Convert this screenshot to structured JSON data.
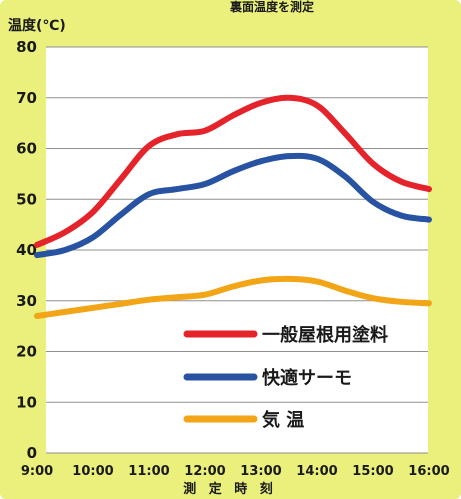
{
  "chart_data": {
    "type": "line",
    "title": "裏面温度を測定",
    "ylabel": "温度(℃)",
    "xlabel": "測 定 時 刻",
    "ylim": [
      0,
      80
    ],
    "yticks": [
      0,
      10,
      20,
      30,
      40,
      50,
      60,
      70,
      80
    ],
    "x_tick_labels": [
      "9:00",
      "10:00",
      "11:00",
      "12:00",
      "13:00",
      "14:00",
      "15:00",
      "16:00"
    ],
    "grid": true,
    "legend_position": "bottom-right",
    "series": [
      {
        "name": "一般屋根用塗料",
        "color": "#e4232b",
        "points": [
          [
            "9:00",
            41
          ],
          [
            "9:30",
            43.5
          ],
          [
            "10:00",
            47.5
          ],
          [
            "10:30",
            54
          ],
          [
            "11:00",
            60.5
          ],
          [
            "11:30",
            62.8
          ],
          [
            "12:00",
            63.5
          ],
          [
            "12:30",
            66.5
          ],
          [
            "13:00",
            69
          ],
          [
            "13:30",
            70
          ],
          [
            "14:00",
            68.5
          ],
          [
            "14:30",
            63
          ],
          [
            "15:00",
            57
          ],
          [
            "15:30",
            53.5
          ],
          [
            "16:00",
            52
          ]
        ]
      },
      {
        "name": "快適サーモ",
        "color": "#2853a3",
        "points": [
          [
            "9:00",
            39
          ],
          [
            "9:30",
            40
          ],
          [
            "10:00",
            42.5
          ],
          [
            "10:30",
            47
          ],
          [
            "11:00",
            51
          ],
          [
            "11:30",
            52
          ],
          [
            "12:00",
            53
          ],
          [
            "12:30",
            55.5
          ],
          [
            "13:00",
            57.5
          ],
          [
            "13:30",
            58.5
          ],
          [
            "14:00",
            58
          ],
          [
            "14:30",
            54.5
          ],
          [
            "15:00",
            49.5
          ],
          [
            "15:30",
            46.8
          ],
          [
            "16:00",
            46
          ]
        ]
      },
      {
        "name": "気 温",
        "color": "#f2a516",
        "points": [
          [
            "9:00",
            27
          ],
          [
            "9:30",
            27.8
          ],
          [
            "10:00",
            28.6
          ],
          [
            "10:30",
            29.4
          ],
          [
            "11:00",
            30.2
          ],
          [
            "11:30",
            30.7
          ],
          [
            "12:00",
            31.2
          ],
          [
            "12:30",
            32.8
          ],
          [
            "13:00",
            34
          ],
          [
            "13:30",
            34.3
          ],
          [
            "14:00",
            33.8
          ],
          [
            "14:30",
            32
          ],
          [
            "15:00",
            30.5
          ],
          [
            "15:30",
            29.8
          ],
          [
            "16:00",
            29.5
          ]
        ]
      }
    ]
  },
  "colors": {
    "panel_background": "#eaf07b",
    "plot_background": "#ffffff",
    "grid_line": "#8f8f8f"
  }
}
